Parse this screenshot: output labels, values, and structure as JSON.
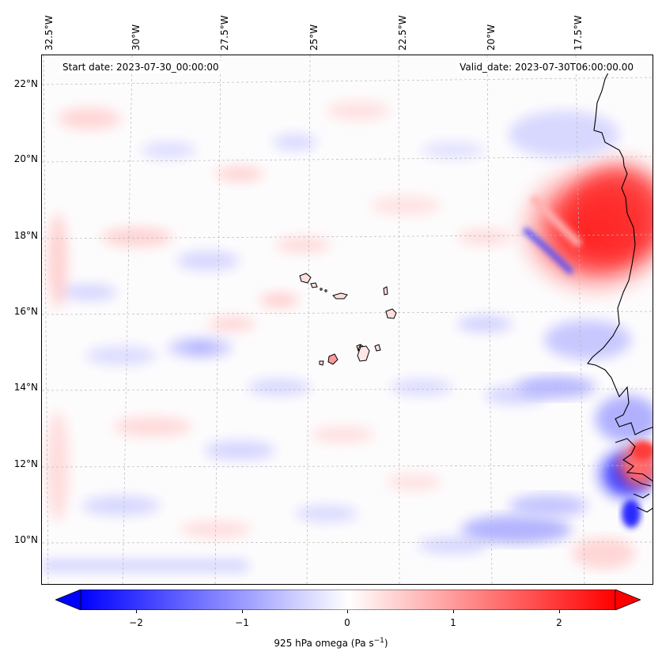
{
  "map": {
    "start_date": "Start date: 2023-07-30_00:00:00",
    "valid_date": "Valid_date: 2023-07-30T06:00:00.00",
    "lon_labels": [
      "32.5°W",
      "30°W",
      "27.5°W",
      "25°W",
      "22.5°W",
      "20°W",
      "17.5°W"
    ],
    "lat_labels": [
      "22°N",
      "20°N",
      "18°N",
      "16°N",
      "14°N",
      "12°N",
      "10°N"
    ],
    "gridlines": true,
    "features": [
      "coastline-west-africa",
      "cape-verde-islands"
    ],
    "colors": {
      "positive": "#ff0000",
      "negative": "#0000ff",
      "neutral": "#ffffff"
    }
  },
  "colorbar": {
    "ticks": [
      "−2",
      "−1",
      "0",
      "1",
      "2"
    ],
    "label_main": "925 hPa omega (Pa s",
    "label_sup": "−1",
    "label_end": ")",
    "range": [
      -2.6,
      2.6
    ],
    "extend": "both",
    "colormap": "bwr"
  }
}
